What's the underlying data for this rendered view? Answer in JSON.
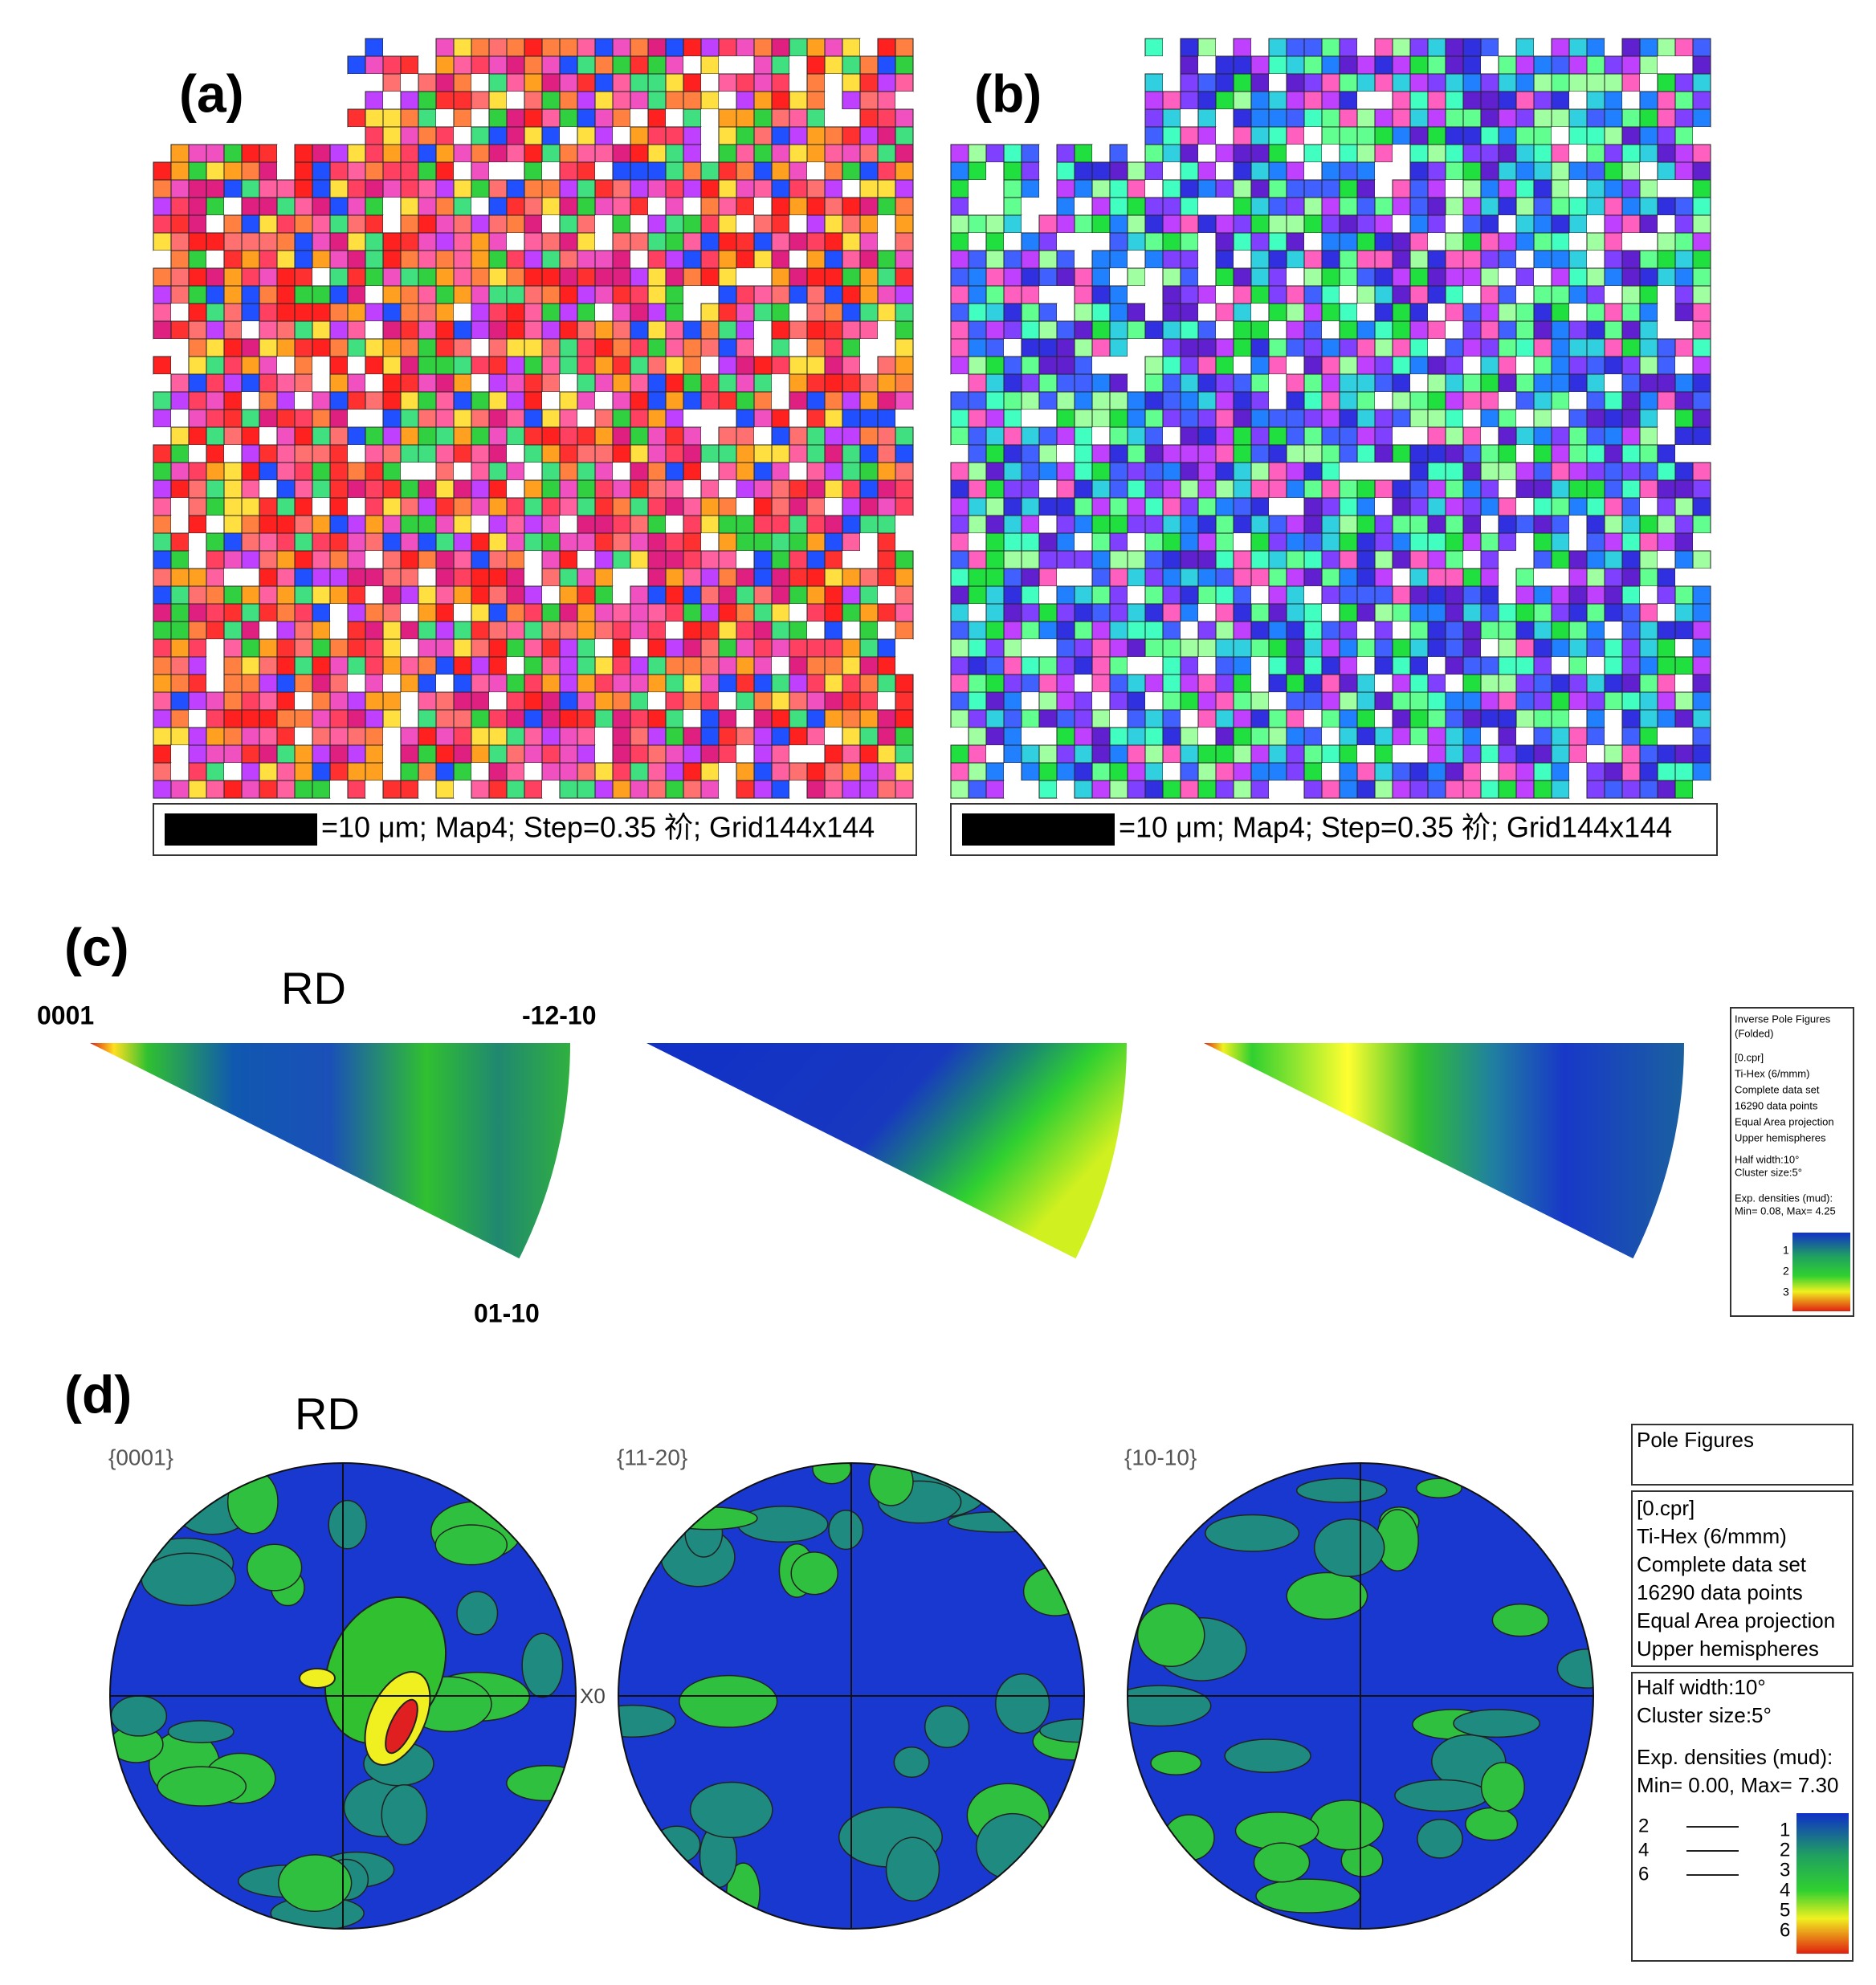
{
  "panels": {
    "a": {
      "label": "(a)",
      "scale_text": "=10 μm; Map4; Step=0.35 祄; Grid144x144"
    },
    "b": {
      "label": "(b)",
      "scale_text": "=10 μm; Map4; Step=0.35 祄; Grid144x144"
    },
    "c": {
      "label": "(c)",
      "direction": "RD",
      "corners": [
        "0001",
        "-12-10",
        "01-10"
      ],
      "legend": {
        "title": [
          "Inverse Pole Figures",
          "(Folded)"
        ],
        "info": [
          "[0.cpr]",
          "Ti-Hex (6/mmm)",
          "Complete data set",
          "16290 data points",
          "Equal Area projection",
          "Upper hemispheres"
        ],
        "params": [
          "Half width:10°",
          "Cluster size:5°",
          "",
          "Exp. densities (mud):",
          "Min= 0.08, Max= 4.25"
        ],
        "scale": [
          "1",
          "2",
          "3"
        ]
      }
    },
    "d": {
      "label": "(d)",
      "direction": "RD",
      "figures": [
        "{0001}",
        "{11-20}",
        "{10-10}"
      ],
      "axis_mark": "X0",
      "legend": {
        "title": "Pole Figures",
        "info": [
          "[0.cpr]",
          "Ti-Hex (6/mmm)",
          "Complete data set",
          "16290 data points",
          "Equal Area projection",
          "Upper hemispheres"
        ],
        "params": [
          "Half width:10°",
          "Cluster size:5°",
          "Exp. densities (mud):",
          "Min= 0.00, Max= 7.30"
        ],
        "contours": [
          "2",
          "4",
          "6"
        ],
        "scale": [
          "1",
          "2",
          "3",
          "4",
          "5",
          "6"
        ]
      }
    }
  }
}
